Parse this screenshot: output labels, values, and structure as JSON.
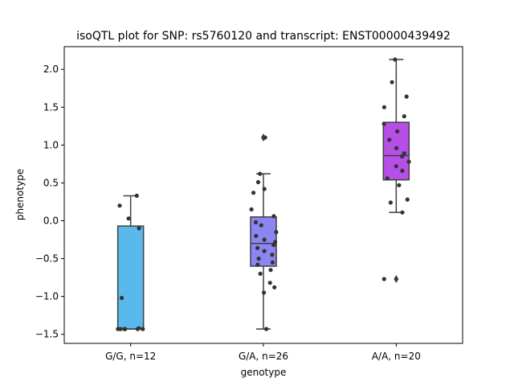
{
  "chart_data": {
    "type": "box",
    "title": "isoQTL plot for SNP: rs5760120 and transcript: ENST00000439492",
    "xlabel": "genotype",
    "ylabel": "phenotype",
    "ylim": [
      -1.62,
      2.3
    ],
    "yticks": [
      -1.5,
      -1.0,
      -0.5,
      0.0,
      0.5,
      1.0,
      1.5,
      2.0
    ],
    "ytick_labels": [
      "−1.5",
      "−1.0",
      "−0.5",
      "0.0",
      "0.5",
      "1.0",
      "1.5",
      "2.0"
    ],
    "grid": false,
    "categories": [
      "G/G, n=12",
      "G/A, n=26",
      "A/A, n=20"
    ],
    "boxes": [
      {
        "category": "G/G, n=12",
        "color": "#5ab9ec",
        "q1": -1.43,
        "median": -1.43,
        "q3": -0.07,
        "whisker_low": -1.43,
        "whisker_high": 0.33,
        "outliers": [],
        "points": [
          0.33,
          0.2,
          0.03,
          -0.1,
          -1.02,
          -1.42,
          -1.43,
          -1.43,
          -1.43,
          -1.43,
          -1.43,
          -1.43
        ]
      },
      {
        "category": "G/A, n=26",
        "color": "#8c86f3",
        "q1": -0.6,
        "median": -0.3,
        "q3": 0.05,
        "whisker_low": -1.43,
        "whisker_high": 0.62,
        "outliers": [
          1.1
        ],
        "points": [
          1.1,
          0.62,
          0.51,
          0.42,
          0.37,
          0.15,
          0.06,
          -0.02,
          -0.06,
          -0.15,
          -0.2,
          -0.25,
          -0.28,
          -0.32,
          -0.36,
          -0.4,
          -0.45,
          -0.5,
          -0.55,
          -0.58,
          -0.65,
          -0.7,
          -0.82,
          -0.88,
          -0.95,
          -1.43
        ]
      },
      {
        "category": "A/A, n=20",
        "color": "#b64ee8",
        "q1": 0.54,
        "median": 0.86,
        "q3": 1.3,
        "whisker_low": 0.11,
        "whisker_high": 2.13,
        "outliers": [
          -0.77
        ],
        "points": [
          2.13,
          1.83,
          1.64,
          1.5,
          1.38,
          1.28,
          1.18,
          1.07,
          0.96,
          0.89,
          0.85,
          0.78,
          0.72,
          0.66,
          0.56,
          0.47,
          0.28,
          0.24,
          0.11,
          -0.77
        ]
      }
    ]
  }
}
